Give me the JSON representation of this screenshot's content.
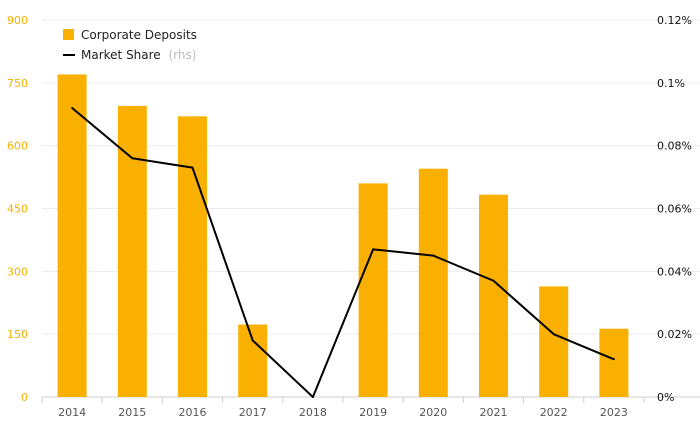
{
  "chart_data": {
    "type": "bar",
    "categories": [
      "2014",
      "2015",
      "2016",
      "2017",
      "2018",
      "2019",
      "2020",
      "2021",
      "2022",
      "2023"
    ],
    "series": [
      {
        "name": "Corporate Deposits",
        "type": "bar",
        "axis": "left",
        "color": "#f9b000",
        "values": [
          770,
          695,
          670,
          173,
          0,
          510,
          545,
          483,
          264,
          163
        ]
      },
      {
        "name": "Market Share",
        "type": "line",
        "axis": "right",
        "color": "#000000",
        "values": [
          0.092,
          0.076,
          0.073,
          0.018,
          0.0,
          0.047,
          0.045,
          0.037,
          0.02,
          0.012
        ]
      }
    ],
    "ylim_left": [
      0,
      900
    ],
    "yticks_left": [
      "0",
      "150",
      "300",
      "450",
      "600",
      "750",
      "900"
    ],
    "ylim_right": [
      0,
      0.12
    ],
    "yticks_right": [
      "0%",
      "0.02%",
      "0.04%",
      "0.06%",
      "0.08%",
      "0.1%",
      "0.12%"
    ],
    "legend": {
      "position": "top-left",
      "bar_label": "Corporate Deposits",
      "line_label": "Market Share",
      "line_suffix": "(rhs)"
    },
    "grid": "horizontal",
    "title": "",
    "xlabel": "",
    "ylabel": ""
  }
}
